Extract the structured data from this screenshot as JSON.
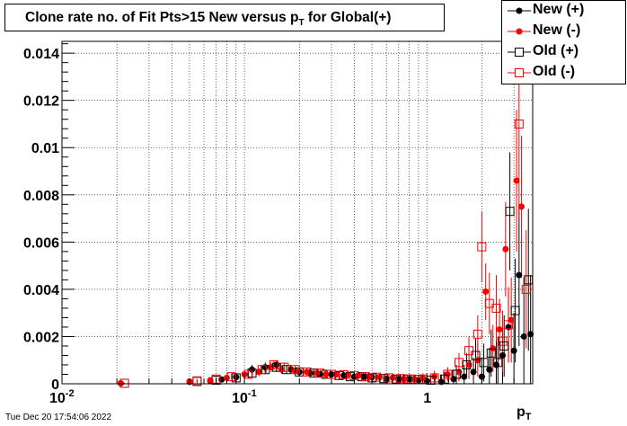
{
  "title": {
    "main": "Clone rate no. of Fit Pts>15 New versus p",
    "sub": "T",
    "suffix": " for Global(+)"
  },
  "x_axis_label": {
    "main": "p",
    "sub": "T"
  },
  "footer": "Tue Dec 20 17:54:06 2022",
  "y_tick_labels": [
    "0",
    "0.002",
    "0.004",
    "0.006",
    "0.008",
    "0.01",
    "0.012",
    "0.014"
  ],
  "x_tick_labels": [
    {
      "base": "10",
      "exp": "-2"
    },
    {
      "base": "10",
      "exp": "-1"
    },
    {
      "base": "1",
      "exp": ""
    }
  ],
  "legend": [
    {
      "label": "New (+)",
      "color": "#000000",
      "marker": "filled-circle"
    },
    {
      "label": "New (-)",
      "color": "#ff0000",
      "marker": "filled-circle"
    },
    {
      "label": "Old (+)",
      "color": "#000000",
      "marker": "open-square"
    },
    {
      "label": "Old (-)",
      "color": "#ff0000",
      "marker": "open-square"
    }
  ],
  "chart_data": {
    "type": "scatter",
    "x_scale": "log",
    "xlim": [
      0.01,
      3.8
    ],
    "ylim": [
      0,
      0.0145
    ],
    "grid": true,
    "legend_position": "top-right",
    "series": [
      {
        "name": "New (+)",
        "color": "#000000",
        "marker": "filled-circle",
        "points": [
          [
            0.021,
            2e-05,
            2e-05
          ],
          [
            0.05,
            8e-05,
            6e-05
          ],
          [
            0.065,
            0.00012,
            0.0001
          ],
          [
            0.075,
            0.00018,
            0.00012
          ],
          [
            0.09,
            0.00028,
            0.00015
          ],
          [
            0.11,
            0.0006,
            0.0002
          ],
          [
            0.13,
            0.0007,
            0.0002
          ],
          [
            0.15,
            0.0008,
            0.0002
          ],
          [
            0.18,
            0.0006,
            0.00015
          ],
          [
            0.2,
            0.0005,
            0.00015
          ],
          [
            0.23,
            0.00045,
            0.00015
          ],
          [
            0.26,
            0.0004,
            0.00015
          ],
          [
            0.3,
            0.0004,
            0.00015
          ],
          [
            0.35,
            0.00035,
            0.00015
          ],
          [
            0.4,
            0.0003,
            0.00015
          ],
          [
            0.45,
            0.0003,
            0.00015
          ],
          [
            0.5,
            0.00028,
            0.00015
          ],
          [
            0.6,
            0.0002,
            0.00015
          ],
          [
            0.7,
            0.0002,
            0.00015
          ],
          [
            0.8,
            0.0002,
            0.0002
          ],
          [
            0.9,
            0.00015,
            0.0002
          ],
          [
            1.0,
            0.00012,
            0.0002
          ],
          [
            1.2,
            8e-05,
            0.0003
          ],
          [
            1.4,
            0.0002,
            0.0004
          ],
          [
            1.6,
            0.0003,
            0.0005
          ],
          [
            1.8,
            0.0005,
            0.0006
          ],
          [
            2.0,
            0.0003,
            0.0008
          ],
          [
            2.2,
            0.0006,
            0.0009
          ],
          [
            2.4,
            0.0008,
            0.001
          ],
          [
            2.6,
            0.0012,
            0.0013
          ],
          [
            2.8,
            0.0024,
            0.0015
          ],
          [
            3.0,
            0.0014,
            0.0016
          ],
          [
            3.2,
            0.0046,
            0.003
          ],
          [
            3.4,
            0.002,
            0.0025
          ],
          [
            3.7,
            0.0021,
            0.0025
          ]
        ]
      },
      {
        "name": "New (-)",
        "color": "#ff0000",
        "marker": "filled-circle",
        "points": [
          [
            0.021,
            2e-05,
            2e-05
          ],
          [
            0.05,
            0.0001,
            7e-05
          ],
          [
            0.065,
            0.00015,
            0.0001
          ],
          [
            0.08,
            0.00025,
            0.00012
          ],
          [
            0.1,
            0.0004,
            0.00015
          ],
          [
            0.12,
            0.0005,
            0.00018
          ],
          [
            0.14,
            0.0007,
            0.0002
          ],
          [
            0.16,
            0.0006,
            0.00018
          ],
          [
            0.19,
            0.00055,
            0.00016
          ],
          [
            0.22,
            0.0005,
            0.00015
          ],
          [
            0.25,
            0.00045,
            0.00015
          ],
          [
            0.28,
            0.0004,
            0.00015
          ],
          [
            0.32,
            0.0004,
            0.00015
          ],
          [
            0.37,
            0.00038,
            0.00015
          ],
          [
            0.42,
            0.00035,
            0.00015
          ],
          [
            0.48,
            0.0003,
            0.00015
          ],
          [
            0.55,
            0.00028,
            0.00015
          ],
          [
            0.65,
            0.00025,
            0.00015
          ],
          [
            0.75,
            0.0002,
            0.00015
          ],
          [
            0.85,
            0.0002,
            0.0002
          ],
          [
            0.95,
            0.00025,
            0.0002
          ],
          [
            1.1,
            0.0003,
            0.00025
          ],
          [
            1.3,
            0.0004,
            0.0003
          ],
          [
            1.5,
            0.0005,
            0.0004
          ],
          [
            1.7,
            0.0008,
            0.0006
          ],
          [
            1.9,
            0.001,
            0.0007
          ],
          [
            2.1,
            0.0039,
            0.0012
          ],
          [
            2.3,
            0.0015,
            0.001
          ],
          [
            2.5,
            0.0023,
            0.0013
          ],
          [
            2.7,
            0.0057,
            0.002
          ],
          [
            2.9,
            0.0027,
            0.0018
          ],
          [
            3.1,
            0.0086,
            0.003
          ],
          [
            3.3,
            0.0075,
            0.003
          ]
        ]
      },
      {
        "name": "Old (+)",
        "color": "#000000",
        "marker": "open-square",
        "points": [
          [
            0.022,
            2e-05,
            2e-05
          ],
          [
            0.055,
            0.0001,
            7e-05
          ],
          [
            0.07,
            0.00015,
            0.0001
          ],
          [
            0.09,
            0.00025,
            0.00013
          ],
          [
            0.11,
            0.00045,
            0.00016
          ],
          [
            0.13,
            0.0006,
            0.0002
          ],
          [
            0.15,
            0.0007,
            0.0002
          ],
          [
            0.17,
            0.0006,
            0.00018
          ],
          [
            0.2,
            0.0005,
            0.00016
          ],
          [
            0.24,
            0.00045,
            0.00015
          ],
          [
            0.28,
            0.0004,
            0.00015
          ],
          [
            0.33,
            0.00035,
            0.00015
          ],
          [
            0.38,
            0.0003,
            0.00015
          ],
          [
            0.44,
            0.0003,
            0.00015
          ],
          [
            0.5,
            0.00025,
            0.00015
          ],
          [
            0.58,
            0.00022,
            0.00015
          ],
          [
            0.68,
            0.0002,
            0.00015
          ],
          [
            0.78,
            0.0002,
            0.00018
          ],
          [
            0.9,
            0.00018,
            0.0002
          ],
          [
            1.05,
            0.00015,
            0.0002
          ],
          [
            1.25,
            0.0002,
            0.0003
          ],
          [
            1.45,
            0.0004,
            0.0004
          ],
          [
            1.65,
            0.0008,
            0.0005
          ],
          [
            1.85,
            0.0012,
            0.0007
          ],
          [
            2.05,
            0.0009,
            0.0008
          ],
          [
            2.25,
            0.0013,
            0.001
          ],
          [
            2.45,
            0.0009,
            0.0011
          ],
          [
            2.65,
            0.0016,
            0.0013
          ],
          [
            2.85,
            0.0073,
            0.0025
          ],
          [
            3.05,
            0.0031,
            0.0022
          ],
          [
            3.6,
            0.0044,
            0.003
          ]
        ]
      },
      {
        "name": "Old (-)",
        "color": "#ff0000",
        "marker": "open-square",
        "points": [
          [
            0.022,
            2e-05,
            2e-05
          ],
          [
            0.055,
            0.00012,
            8e-05
          ],
          [
            0.07,
            0.0002,
            0.0001
          ],
          [
            0.085,
            0.0003,
            0.00013
          ],
          [
            0.105,
            0.0004,
            0.00015
          ],
          [
            0.125,
            0.0006,
            0.00018
          ],
          [
            0.145,
            0.0008,
            0.0002
          ],
          [
            0.165,
            0.0007,
            0.0002
          ],
          [
            0.19,
            0.0006,
            0.00017
          ],
          [
            0.22,
            0.0005,
            0.00016
          ],
          [
            0.26,
            0.00045,
            0.00015
          ],
          [
            0.3,
            0.0004,
            0.00015
          ],
          [
            0.35,
            0.00038,
            0.00015
          ],
          [
            0.4,
            0.00035,
            0.00015
          ],
          [
            0.46,
            0.0003,
            0.00015
          ],
          [
            0.53,
            0.00028,
            0.00015
          ],
          [
            0.62,
            0.00025,
            0.00015
          ],
          [
            0.72,
            0.00022,
            0.00016
          ],
          [
            0.82,
            0.0002,
            0.00018
          ],
          [
            0.95,
            0.0002,
            0.0002
          ],
          [
            1.1,
            0.00025,
            0.00025
          ],
          [
            1.3,
            0.0004,
            0.0003
          ],
          [
            1.5,
            0.0009,
            0.0004
          ],
          [
            1.7,
            0.0014,
            0.0006
          ],
          [
            1.9,
            0.0021,
            0.0008
          ],
          [
            2.0,
            0.0058,
            0.0015
          ],
          [
            2.2,
            0.0034,
            0.0013
          ],
          [
            2.4,
            0.0032,
            0.0014
          ],
          [
            2.6,
            0.0018,
            0.0013
          ],
          [
            2.8,
            0.0025,
            0.0016
          ],
          [
            3.2,
            0.011,
            0.004
          ],
          [
            3.5,
            0.004,
            0.0025
          ]
        ]
      }
    ]
  }
}
